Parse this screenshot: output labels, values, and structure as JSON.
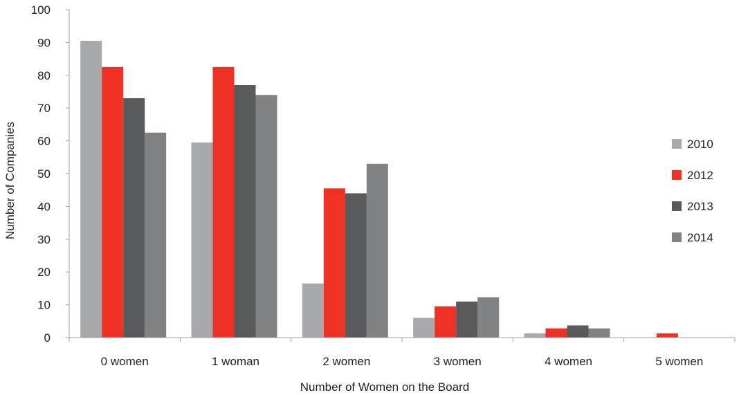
{
  "chart_data": {
    "type": "bar",
    "title": "",
    "xlabel": "Number of Women on the Board",
    "ylabel": "Number of Companies",
    "ylim": [
      0,
      100
    ],
    "yticks": [
      0,
      10,
      20,
      30,
      40,
      50,
      60,
      70,
      80,
      90,
      100
    ],
    "grid": false,
    "legend_position": "right",
    "categories": [
      "0 women",
      "1 woman",
      "2 women",
      "3 women",
      "4 women",
      "5 women"
    ],
    "series": [
      {
        "name": "2010",
        "color": "#a7a9ac",
        "values": [
          90.5,
          59.5,
          16.5,
          6,
          1.3,
          0
        ]
      },
      {
        "name": "2012",
        "color": "#ee3124",
        "values": [
          82.5,
          82.5,
          45.5,
          9.5,
          2.8,
          1.3
        ]
      },
      {
        "name": "2013",
        "color": "#58595b",
        "values": [
          73,
          77,
          44,
          11,
          3.7,
          0
        ]
      },
      {
        "name": "2014",
        "color": "#808285",
        "values": [
          62.5,
          74,
          53,
          12.3,
          2.8,
          0
        ]
      }
    ]
  }
}
